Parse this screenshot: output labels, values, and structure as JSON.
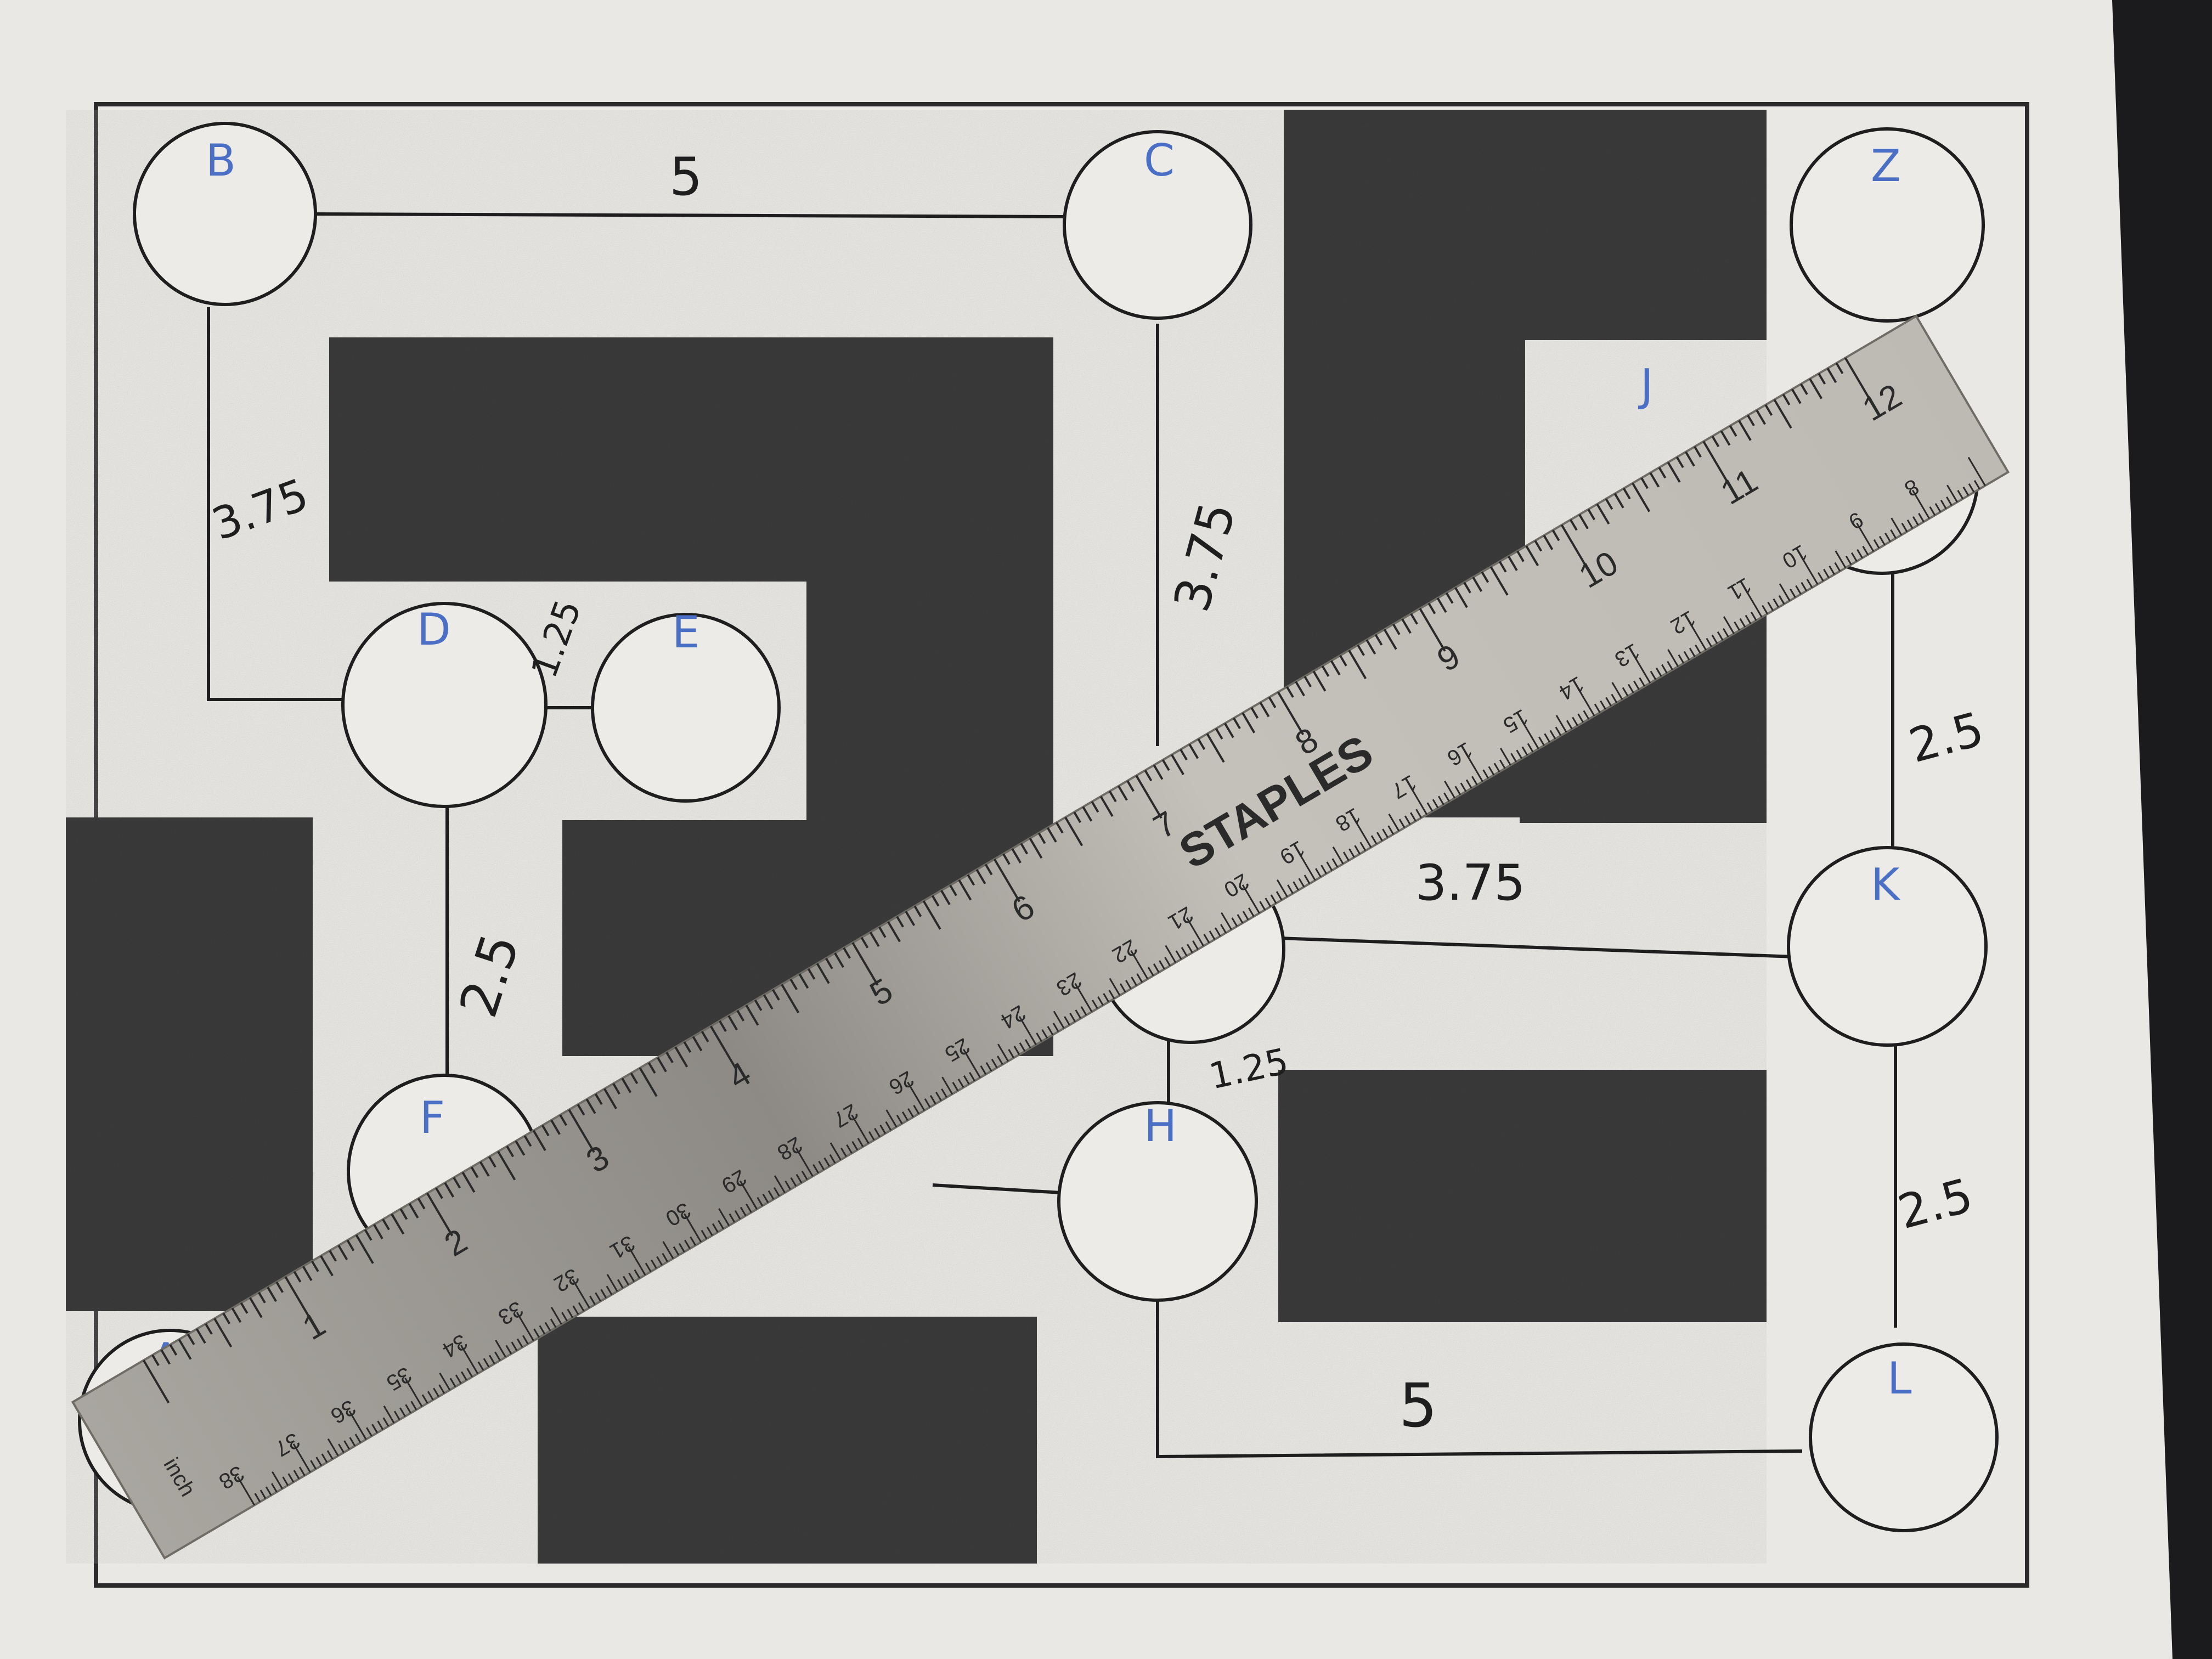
{
  "nodes": [
    {
      "id": "B",
      "label": "B"
    },
    {
      "id": "C",
      "label": "C"
    },
    {
      "id": "Z",
      "label": "Z"
    },
    {
      "id": "J",
      "label": "J"
    },
    {
      "id": "D",
      "label": "D"
    },
    {
      "id": "E",
      "label": "E"
    },
    {
      "id": "F",
      "label": "F"
    },
    {
      "id": "K",
      "label": "K"
    },
    {
      "id": "G",
      "label": ""
    },
    {
      "id": "H",
      "label": "H"
    },
    {
      "id": "A",
      "label": "A"
    },
    {
      "id": "L",
      "label": "L"
    }
  ],
  "edges": [
    {
      "from": "B",
      "to": "C",
      "weight": "5"
    },
    {
      "from": "B",
      "to": "D",
      "weight": "3.75"
    },
    {
      "from": "C",
      "to": "G",
      "weight": "3.75"
    },
    {
      "from": "D",
      "to": "E",
      "weight": "1.25"
    },
    {
      "from": "D",
      "to": "F",
      "weight": "2.5"
    },
    {
      "from": "G",
      "to": "K",
      "weight": "3.75"
    },
    {
      "from": "G",
      "to": "H",
      "weight": "1.25"
    },
    {
      "from": "J",
      "to": "K",
      "weight": "2.5"
    },
    {
      "from": "K",
      "to": "L",
      "weight": "2.5"
    },
    {
      "from": "H",
      "to": "L",
      "weight": "5"
    }
  ],
  "ruler": {
    "brand": "STAPLES",
    "inch_label": "inch",
    "inch_marks": [
      "1",
      "2",
      "3",
      "4",
      "5",
      "6",
      "7",
      "8",
      "9",
      "10",
      "11",
      "12"
    ],
    "cm_marks": [
      "38",
      "37",
      "36",
      "35",
      "34",
      "33",
      "32",
      "31",
      "30",
      "29",
      "28",
      "27",
      "26",
      "25",
      "24",
      "23",
      "22",
      "21",
      "20",
      "19",
      "18",
      "17",
      "16",
      "15",
      "14",
      "13",
      "12",
      "11",
      "10",
      "9",
      "8"
    ]
  },
  "colors": {
    "paper": "#e9e8e4",
    "shading": "#3a3a3a",
    "node_label": "#4a6fc4",
    "ruler": "#b9b6ae"
  }
}
